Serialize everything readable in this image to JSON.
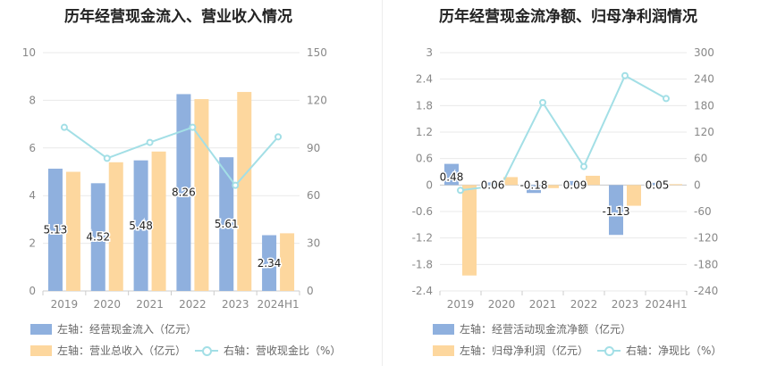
{
  "colors": {
    "blue": "#8fb0de",
    "orange": "#fdd79e",
    "teal": "#a3dfe6",
    "grid": "#e9e9e9",
    "axis": "#cccccc"
  },
  "chart_data": [
    {
      "type": "bar",
      "title": "历年经营现金流入、营业收入情况",
      "categories": [
        "2019",
        "2020",
        "2021",
        "2022",
        "2023",
        "2024H1"
      ],
      "left_axis": {
        "ylim": [
          0,
          10
        ],
        "ticks": [
          "0",
          "2",
          "4",
          "6",
          "8",
          "10"
        ]
      },
      "right_axis": {
        "ylim": [
          0,
          150
        ],
        "ticks": [
          "0",
          "30",
          "60",
          "90",
          "120",
          "150"
        ]
      },
      "series": [
        {
          "name": "左轴：经营现金流入（亿元）",
          "axis": "left",
          "kind": "bar",
          "color": "#8fb0de",
          "values": [
            5.13,
            4.52,
            5.48,
            8.26,
            5.61,
            2.34
          ],
          "labels": [
            "5.13",
            "4.52",
            "5.48",
            "8.26",
            "5.61",
            "2.34"
          ]
        },
        {
          "name": "左轴：营业总收入（亿元）",
          "axis": "left",
          "kind": "bar",
          "color": "#fdd79e",
          "values": [
            5.0,
            5.4,
            5.85,
            8.05,
            8.35,
            2.42
          ]
        },
        {
          "name": "右轴：营收现金比（%）",
          "axis": "right",
          "kind": "line",
          "color": "#a3dfe6",
          "values": [
            103,
            83.5,
            93.5,
            103,
            66.5,
            97
          ]
        }
      ],
      "legend": "bottom"
    },
    {
      "type": "bar",
      "title": "历年经营现金流净额、归母净利润情况",
      "categories": [
        "2019",
        "2020",
        "2021",
        "2022",
        "2023",
        "2024H1"
      ],
      "left_axis": {
        "ylim": [
          -2.4,
          3
        ],
        "ticks": [
          "-2.4",
          "-1.8",
          "-1.2",
          "-0.6",
          "0",
          "0.6",
          "1.2",
          "1.8",
          "2.4",
          "3"
        ]
      },
      "right_axis": {
        "ylim": [
          -240,
          300
        ],
        "ticks": [
          "-240",
          "-180",
          "-120",
          "-60",
          "0",
          "60",
          "120",
          "180",
          "240",
          "300"
        ]
      },
      "series": [
        {
          "name": "左轴：经营活动现金流净额（亿元）",
          "axis": "left",
          "kind": "bar",
          "color": "#8fb0de",
          "values": [
            0.48,
            0.06,
            -0.18,
            0.09,
            -1.13,
            0.05
          ],
          "labels": [
            "0.48",
            "0.06",
            "-0.18",
            "0.09",
            "-1.13",
            "0.05"
          ]
        },
        {
          "name": "左轴：归母净利润（亿元）",
          "axis": "left",
          "kind": "bar",
          "color": "#fdd79e",
          "values": [
            -2.05,
            0.18,
            -0.07,
            0.21,
            -0.47,
            0.02
          ]
        },
        {
          "name": "右轴：净现比（%）",
          "axis": "right",
          "kind": "line",
          "color": "#a3dfe6",
          "values": [
            -12,
            0,
            187,
            42,
            248,
            196
          ]
        }
      ],
      "legend": "bottom"
    }
  ]
}
